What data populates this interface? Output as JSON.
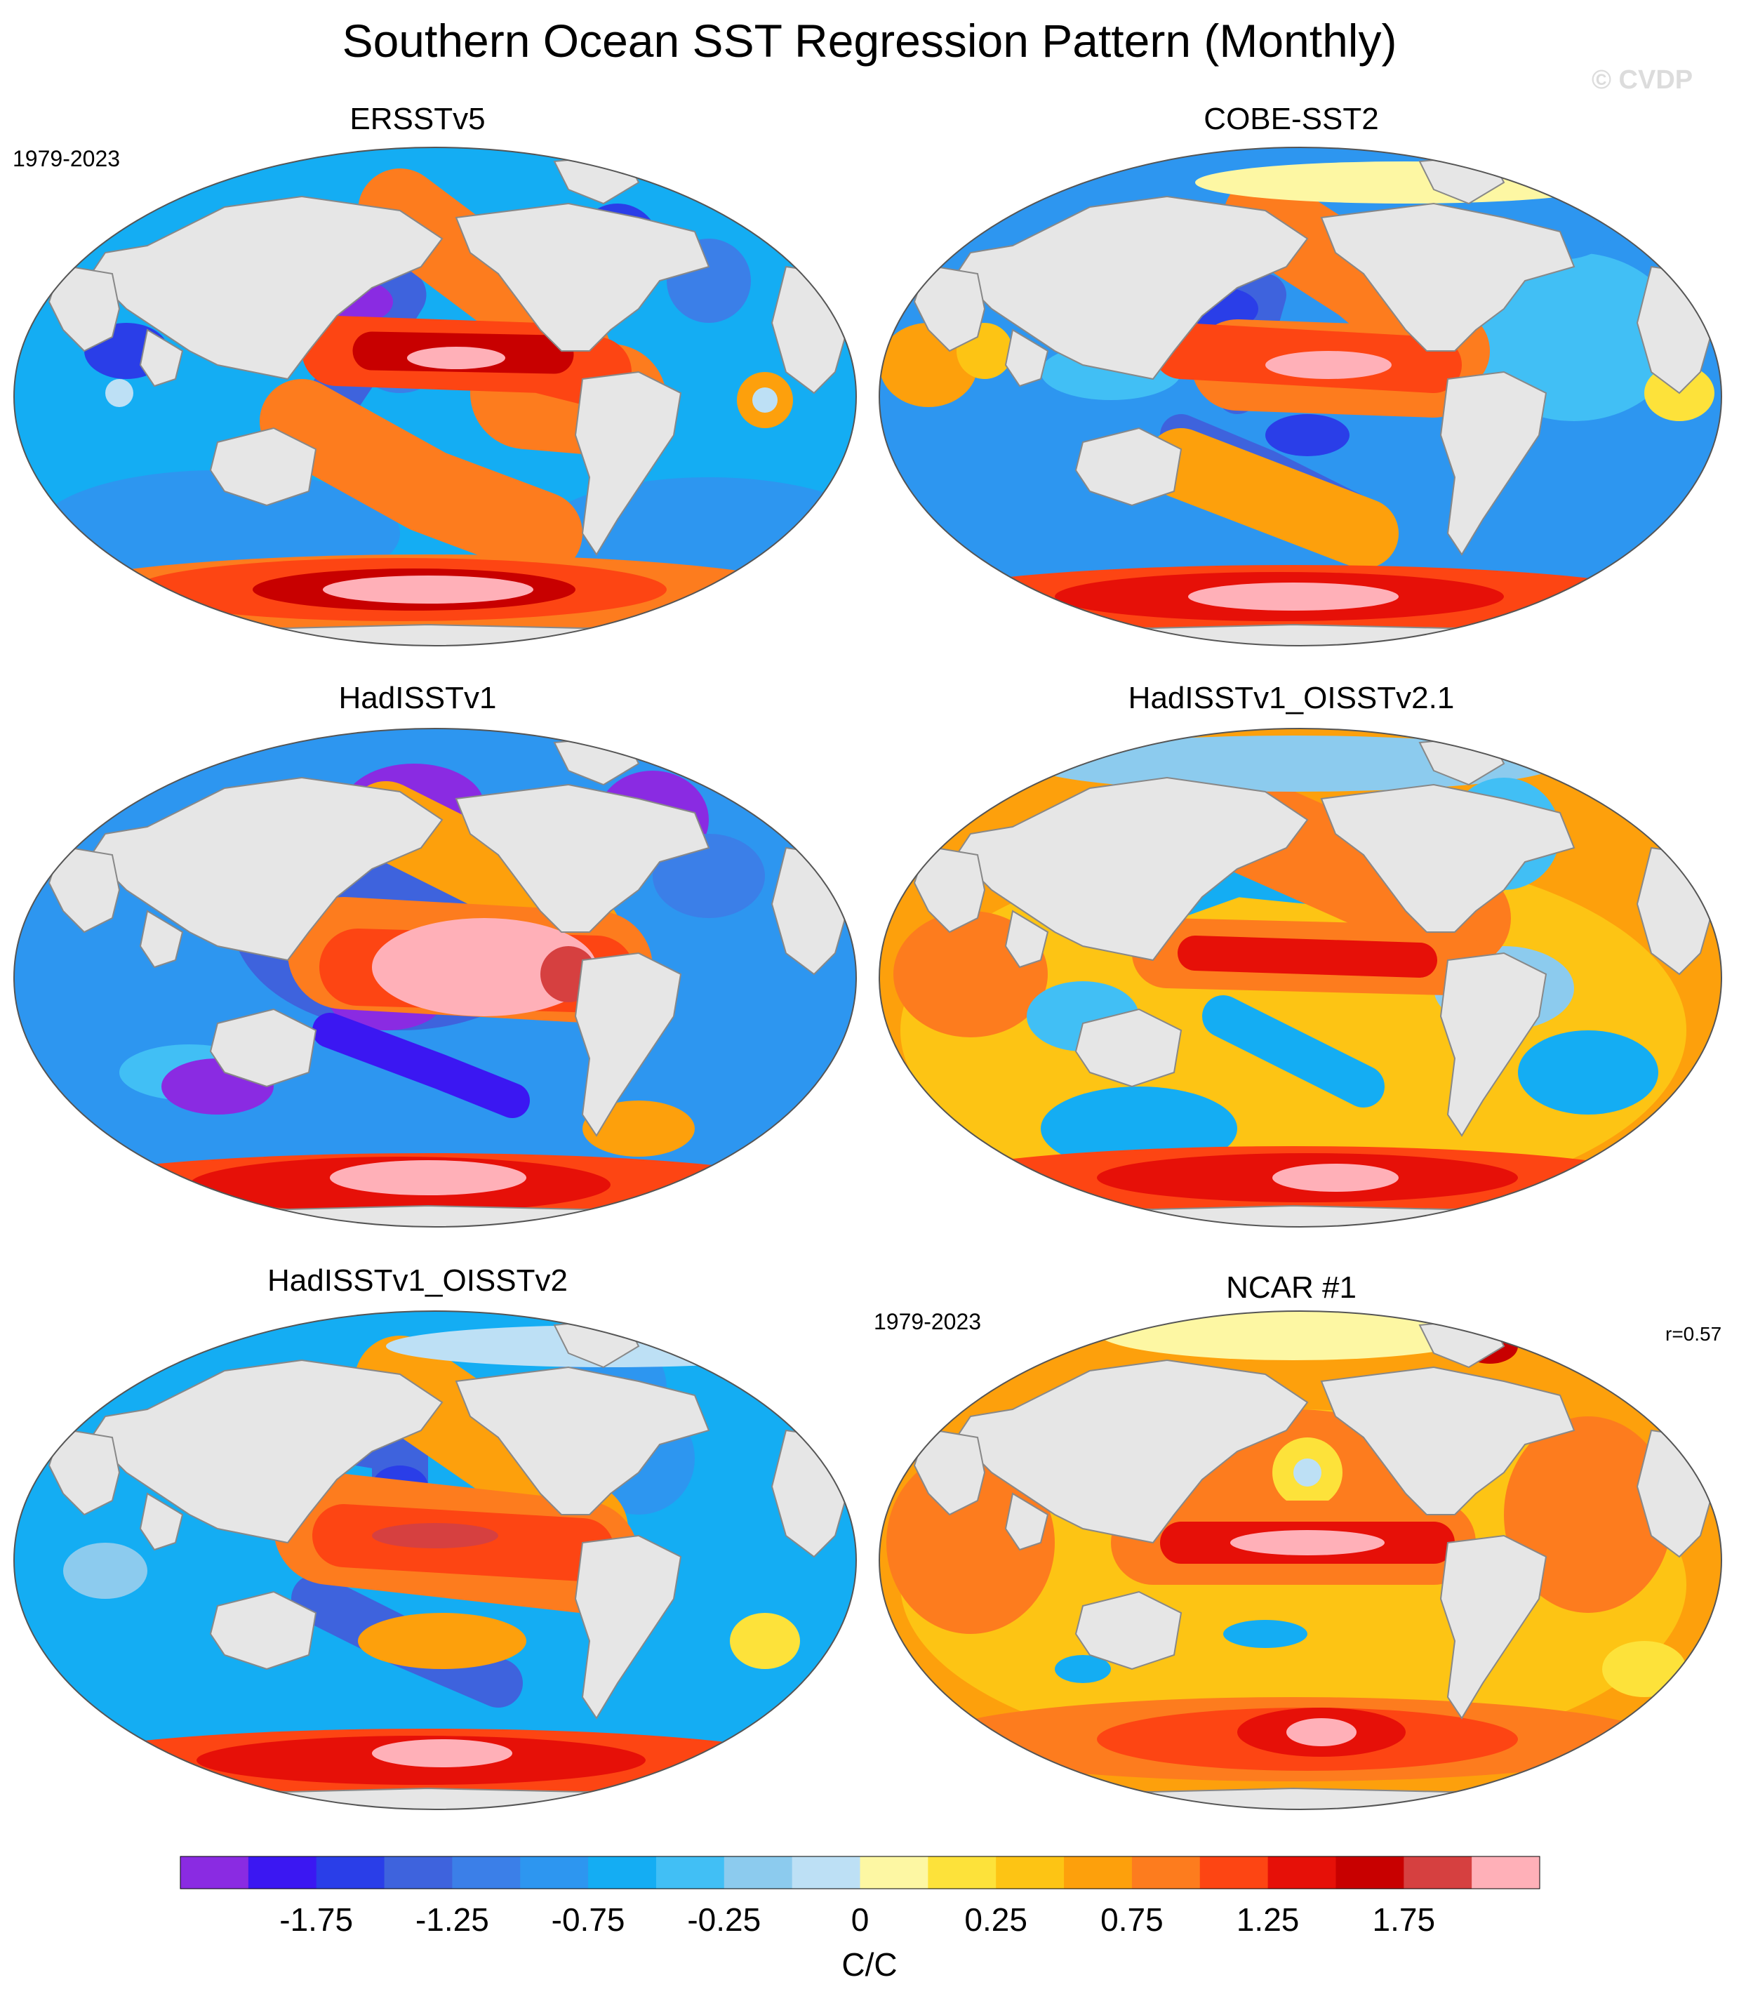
{
  "title": "Southern Ocean SST Regression Pattern (Monthly)",
  "watermark": "© CVDP",
  "panels": [
    {
      "title": "ERSSTv5",
      "left_label": "1979-2023",
      "right_label": "",
      "scheme": "ersst"
    },
    {
      "title": "COBE-SST2",
      "left_label": "",
      "right_label": "",
      "scheme": "cobe"
    },
    {
      "title": "HadISSTv1",
      "left_label": "",
      "right_label": "",
      "scheme": "hadisst"
    },
    {
      "title": "HadISSTv1_OISSTv2.1",
      "left_label": "",
      "right_label": "",
      "scheme": "oisst21"
    },
    {
      "title": "HadISSTv1_OISSTv2",
      "left_label": "",
      "right_label": "",
      "scheme": "oisst2"
    },
    {
      "title": "NCAR #1",
      "left_label": "1979-2023",
      "right_label": "r=0.57",
      "scheme": "ncar"
    }
  ],
  "colorbar": {
    "colors": [
      "#8a2be2",
      "#3b17f2",
      "#2a3ee8",
      "#3e63dd",
      "#3b7fe8",
      "#2d96f0",
      "#14adf3",
      "#41bff5",
      "#8ccbee",
      "#bde0f5",
      "#fdf7a3",
      "#fde23a",
      "#fdc414",
      "#fda00c",
      "#fd7c1e",
      "#fd4513",
      "#e61008",
      "#c80000",
      "#d64040",
      "#ffb0b8"
    ],
    "tick_labels": [
      "-1.75",
      "-1.25",
      "-0.75",
      "-0.25",
      "0",
      "0.25",
      "0.75",
      "1.25",
      "1.75"
    ],
    "units": "C/C"
  },
  "colors": {
    "land": "#e6e6e6",
    "coast": "#888888"
  }
}
